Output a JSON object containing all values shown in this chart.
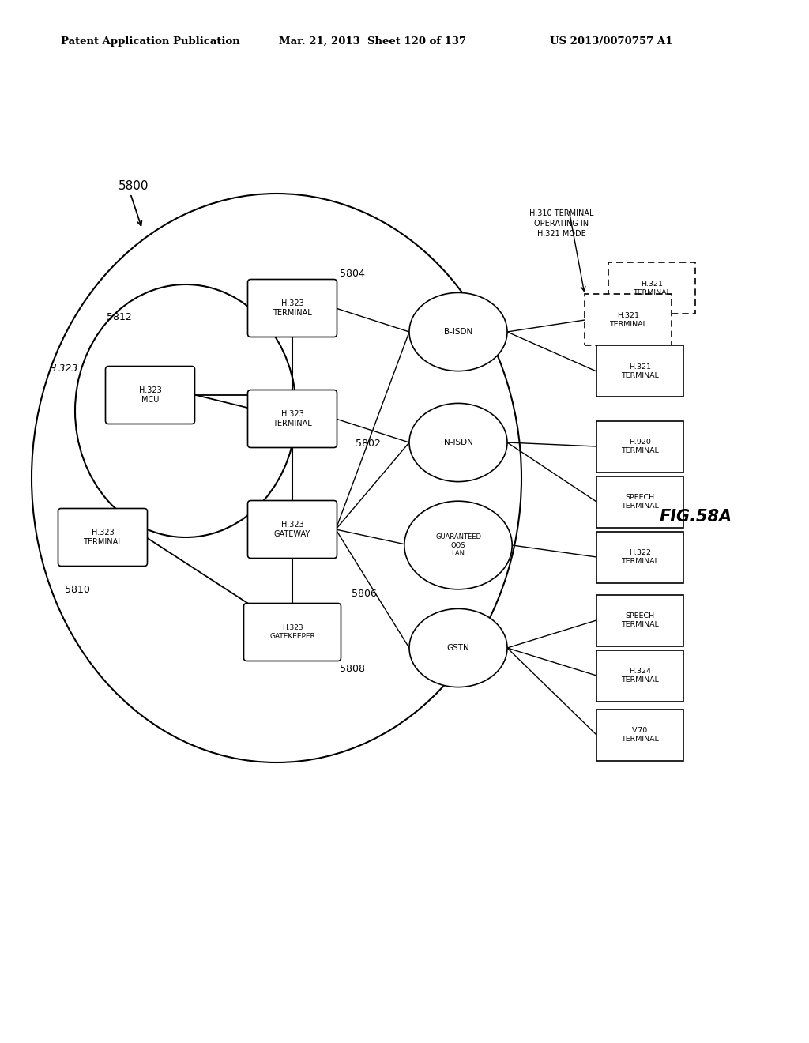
{
  "header_left": "Patent Application Publication",
  "header_mid": "Mar. 21, 2013  Sheet 120 of 137",
  "header_right": "US 2013/0070757 A1",
  "figure_label": "FIG.58A",
  "bg_color": "#ffffff",
  "label_5800": "5800",
  "label_5812": "5812",
  "label_5810": "5810",
  "label_5802": "5802",
  "label_5804": "5804",
  "label_5806": "5806",
  "label_5808": "5808",
  "annotation_text": "H.310 TERMINAL\nOPERATING IN\nH.321 MODE"
}
